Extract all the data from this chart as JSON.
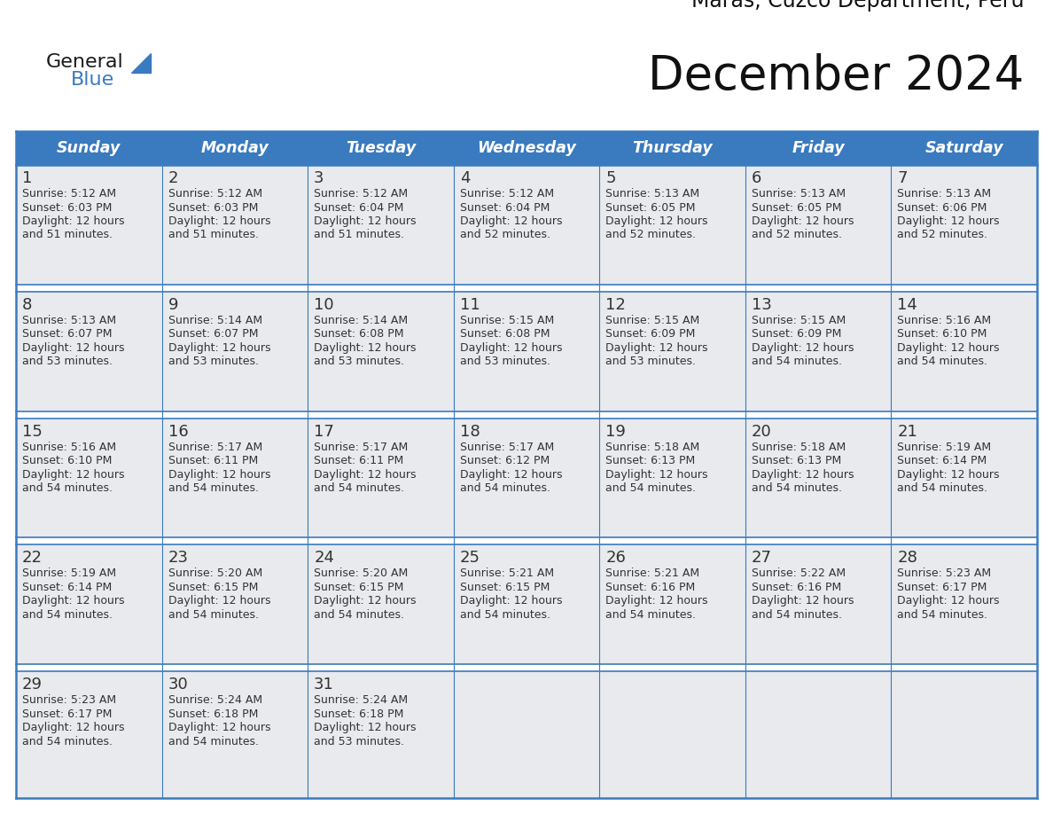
{
  "title": "December 2024",
  "subtitle": "Maras, Cuzco Department, Peru",
  "header_color": "#3a7abf",
  "header_text_color": "#ffffff",
  "cell_bg_color": "#e8eaed",
  "border_color": "#3a7abf",
  "text_color": "#333333",
  "day_headers": [
    "Sunday",
    "Monday",
    "Tuesday",
    "Wednesday",
    "Thursday",
    "Friday",
    "Saturday"
  ],
  "weeks": [
    [
      {
        "day": 1,
        "sunrise": "5:12 AM",
        "sunset": "6:03 PM",
        "daylight_min": "51"
      },
      {
        "day": 2,
        "sunrise": "5:12 AM",
        "sunset": "6:03 PM",
        "daylight_min": "51"
      },
      {
        "day": 3,
        "sunrise": "5:12 AM",
        "sunset": "6:04 PM",
        "daylight_min": "51"
      },
      {
        "day": 4,
        "sunrise": "5:12 AM",
        "sunset": "6:04 PM",
        "daylight_min": "52"
      },
      {
        "day": 5,
        "sunrise": "5:13 AM",
        "sunset": "6:05 PM",
        "daylight_min": "52"
      },
      {
        "day": 6,
        "sunrise": "5:13 AM",
        "sunset": "6:05 PM",
        "daylight_min": "52"
      },
      {
        "day": 7,
        "sunrise": "5:13 AM",
        "sunset": "6:06 PM",
        "daylight_min": "52"
      }
    ],
    [
      {
        "day": 8,
        "sunrise": "5:13 AM",
        "sunset": "6:07 PM",
        "daylight_min": "53"
      },
      {
        "day": 9,
        "sunrise": "5:14 AM",
        "sunset": "6:07 PM",
        "daylight_min": "53"
      },
      {
        "day": 10,
        "sunrise": "5:14 AM",
        "sunset": "6:08 PM",
        "daylight_min": "53"
      },
      {
        "day": 11,
        "sunrise": "5:15 AM",
        "sunset": "6:08 PM",
        "daylight_min": "53"
      },
      {
        "day": 12,
        "sunrise": "5:15 AM",
        "sunset": "6:09 PM",
        "daylight_min": "53"
      },
      {
        "day": 13,
        "sunrise": "5:15 AM",
        "sunset": "6:09 PM",
        "daylight_min": "54"
      },
      {
        "day": 14,
        "sunrise": "5:16 AM",
        "sunset": "6:10 PM",
        "daylight_min": "54"
      }
    ],
    [
      {
        "day": 15,
        "sunrise": "5:16 AM",
        "sunset": "6:10 PM",
        "daylight_min": "54"
      },
      {
        "day": 16,
        "sunrise": "5:17 AM",
        "sunset": "6:11 PM",
        "daylight_min": "54"
      },
      {
        "day": 17,
        "sunrise": "5:17 AM",
        "sunset": "6:11 PM",
        "daylight_min": "54"
      },
      {
        "day": 18,
        "sunrise": "5:17 AM",
        "sunset": "6:12 PM",
        "daylight_min": "54"
      },
      {
        "day": 19,
        "sunrise": "5:18 AM",
        "sunset": "6:13 PM",
        "daylight_min": "54"
      },
      {
        "day": 20,
        "sunrise": "5:18 AM",
        "sunset": "6:13 PM",
        "daylight_min": "54"
      },
      {
        "day": 21,
        "sunrise": "5:19 AM",
        "sunset": "6:14 PM",
        "daylight_min": "54"
      }
    ],
    [
      {
        "day": 22,
        "sunrise": "5:19 AM",
        "sunset": "6:14 PM",
        "daylight_min": "54"
      },
      {
        "day": 23,
        "sunrise": "5:20 AM",
        "sunset": "6:15 PM",
        "daylight_min": "54"
      },
      {
        "day": 24,
        "sunrise": "5:20 AM",
        "sunset": "6:15 PM",
        "daylight_min": "54"
      },
      {
        "day": 25,
        "sunrise": "5:21 AM",
        "sunset": "6:15 PM",
        "daylight_min": "54"
      },
      {
        "day": 26,
        "sunrise": "5:21 AM",
        "sunset": "6:16 PM",
        "daylight_min": "54"
      },
      {
        "day": 27,
        "sunrise": "5:22 AM",
        "sunset": "6:16 PM",
        "daylight_min": "54"
      },
      {
        "day": 28,
        "sunrise": "5:23 AM",
        "sunset": "6:17 PM",
        "daylight_min": "54"
      }
    ],
    [
      {
        "day": 29,
        "sunrise": "5:23 AM",
        "sunset": "6:17 PM",
        "daylight_min": "54"
      },
      {
        "day": 30,
        "sunrise": "5:24 AM",
        "sunset": "6:18 PM",
        "daylight_min": "54"
      },
      {
        "day": 31,
        "sunrise": "5:24 AM",
        "sunset": "6:18 PM",
        "daylight_min": "53"
      },
      null,
      null,
      null,
      null
    ]
  ],
  "logo_general_color": "#1a1a1a",
  "logo_blue_color": "#3a7abf",
  "figsize": [
    11.88,
    9.18
  ],
  "dpi": 100
}
